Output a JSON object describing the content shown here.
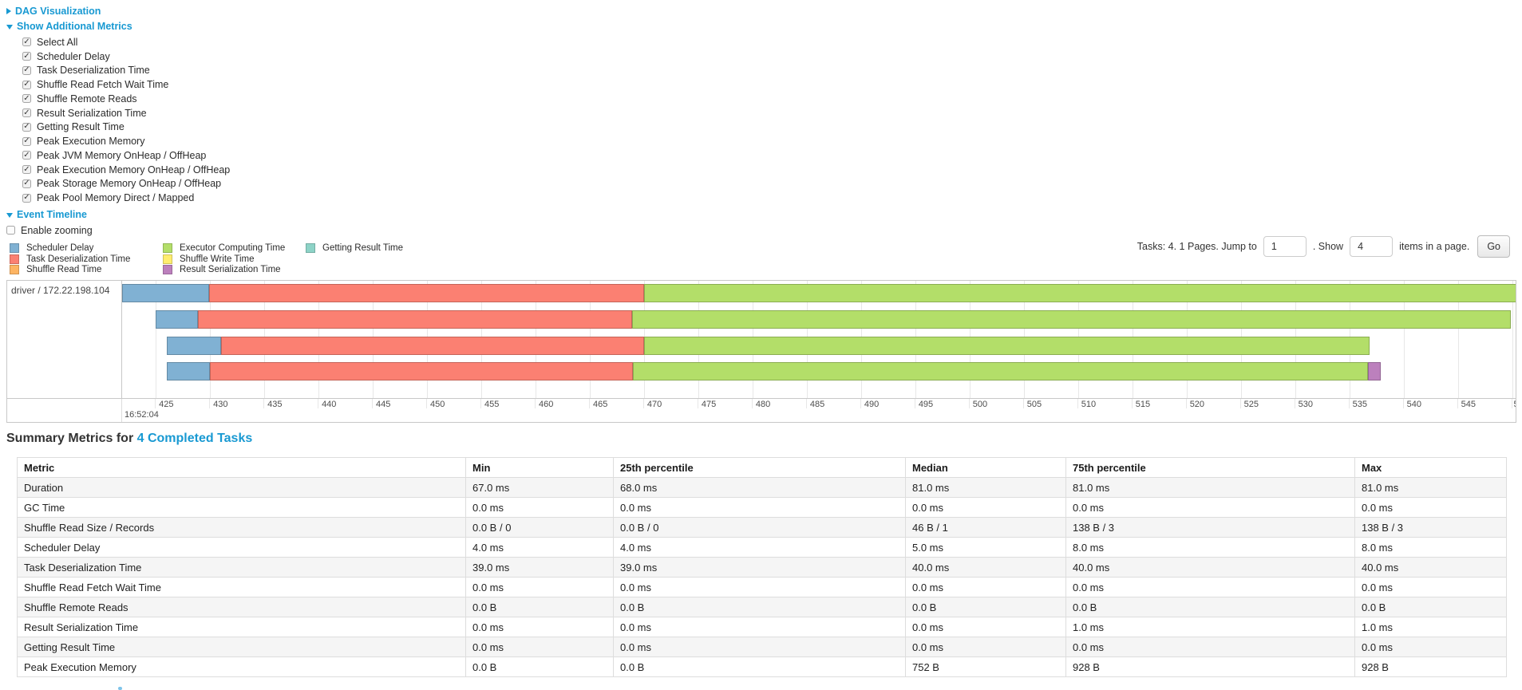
{
  "controls": {
    "dag_link": "DAG Visualization",
    "metrics_link": "Show Additional Metrics",
    "checkboxes": [
      {
        "label": "Select All",
        "checked": true
      },
      {
        "label": "Scheduler Delay",
        "checked": true
      },
      {
        "label": "Task Deserialization Time",
        "checked": true
      },
      {
        "label": "Shuffle Read Fetch Wait Time",
        "checked": true
      },
      {
        "label": "Shuffle Remote Reads",
        "checked": true
      },
      {
        "label": "Result Serialization Time",
        "checked": true
      },
      {
        "label": "Getting Result Time",
        "checked": true
      },
      {
        "label": "Peak Execution Memory",
        "checked": true
      },
      {
        "label": "Peak JVM Memory OnHeap / OffHeap",
        "checked": true
      },
      {
        "label": "Peak Execution Memory OnHeap / OffHeap",
        "checked": true
      },
      {
        "label": "Peak Storage Memory OnHeap / OffHeap",
        "checked": true
      },
      {
        "label": "Peak Pool Memory Direct / Mapped",
        "checked": true
      }
    ],
    "event_timeline_link": "Event Timeline",
    "enable_zooming_label": "Enable zooming",
    "enable_zooming_checked": false
  },
  "legend": {
    "columns": [
      [
        {
          "label": "Scheduler Delay",
          "color": "#80B1D3"
        },
        {
          "label": "Task Deserialization Time",
          "color": "#FB8072"
        },
        {
          "label": "Shuffle Read Time",
          "color": "#FDB462"
        }
      ],
      [
        {
          "label": "Executor Computing Time",
          "color": "#B3DE69"
        },
        {
          "label": "Shuffle Write Time",
          "color": "#FFED6F"
        },
        {
          "label": "Result Serialization Time",
          "color": "#BC80BD"
        }
      ],
      [
        {
          "label": "Getting Result Time",
          "color": "#8DD3C7"
        }
      ]
    ]
  },
  "pagination": {
    "prefix": "Tasks: 4. 1 Pages. Jump to",
    "jump_value": "1",
    "mid": ". Show",
    "show_value": "4",
    "suffix": "items in a page.",
    "go_label": "Go"
  },
  "chart_data": {
    "type": "timeline",
    "title": "Event Timeline",
    "group_label": "driver / 172.22.198.104",
    "x_axis": {
      "t_min": 421.9,
      "t_max": 550.4,
      "tick_start": 425,
      "tick_end": 550,
      "tick_step": 5,
      "last_tick_label": "5",
      "clock_label": "16:52:04"
    },
    "series_colors": {
      "scheduler_delay": "#80B1D3",
      "task_deserialization": "#FB8072",
      "shuffle_read": "#FDB462",
      "executor_computing": "#B3DE69",
      "shuffle_write": "#FFED6F",
      "result_serialization": "#BC80BD",
      "getting_result": "#8DD3C7"
    },
    "tasks": [
      {
        "segments": [
          {
            "type": "scheduler_delay",
            "start": 421.9,
            "end": 429.9
          },
          {
            "type": "task_deserialization",
            "start": 429.9,
            "end": 470.0
          },
          {
            "type": "executor_computing",
            "start": 470.0,
            "end": 550.4
          }
        ]
      },
      {
        "segments": [
          {
            "type": "scheduler_delay",
            "start": 425.0,
            "end": 428.9
          },
          {
            "type": "task_deserialization",
            "start": 428.9,
            "end": 468.9
          },
          {
            "type": "executor_computing",
            "start": 468.9,
            "end": 549.9
          }
        ]
      },
      {
        "segments": [
          {
            "type": "scheduler_delay",
            "start": 426.0,
            "end": 431.0
          },
          {
            "type": "task_deserialization",
            "start": 431.0,
            "end": 470.0
          },
          {
            "type": "executor_computing",
            "start": 470.0,
            "end": 536.9
          }
        ]
      },
      {
        "segments": [
          {
            "type": "scheduler_delay",
            "start": 426.0,
            "end": 430.0
          },
          {
            "type": "task_deserialization",
            "start": 430.0,
            "end": 469.0
          },
          {
            "type": "executor_computing",
            "start": 469.0,
            "end": 536.7
          },
          {
            "type": "result_serialization",
            "start": 536.7,
            "end": 537.9
          }
        ]
      }
    ]
  },
  "summary": {
    "heading_prefix": "Summary Metrics for ",
    "heading_link": "4 Completed Tasks",
    "headers": [
      "Metric",
      "Min",
      "25th percentile",
      "Median",
      "75th percentile",
      "Max"
    ],
    "rows": [
      [
        "Duration",
        "67.0 ms",
        "68.0 ms",
        "81.0 ms",
        "81.0 ms",
        "81.0 ms"
      ],
      [
        "GC Time",
        "0.0 ms",
        "0.0 ms",
        "0.0 ms",
        "0.0 ms",
        "0.0 ms"
      ],
      [
        "Shuffle Read Size / Records",
        "0.0 B / 0",
        "0.0 B / 0",
        "46 B / 1",
        "138 B / 3",
        "138 B / 3"
      ],
      [
        "Scheduler Delay",
        "4.0 ms",
        "4.0 ms",
        "5.0 ms",
        "8.0 ms",
        "8.0 ms"
      ],
      [
        "Task Deserialization Time",
        "39.0 ms",
        "39.0 ms",
        "40.0 ms",
        "40.0 ms",
        "40.0 ms"
      ],
      [
        "Shuffle Read Fetch Wait Time",
        "0.0 ms",
        "0.0 ms",
        "0.0 ms",
        "0.0 ms",
        "0.0 ms"
      ],
      [
        "Shuffle Remote Reads",
        "0.0 B",
        "0.0 B",
        "0.0 B",
        "0.0 B",
        "0.0 B"
      ],
      [
        "Result Serialization Time",
        "0.0 ms",
        "0.0 ms",
        "0.0 ms",
        "1.0 ms",
        "1.0 ms"
      ],
      [
        "Getting Result Time",
        "0.0 ms",
        "0.0 ms",
        "0.0 ms",
        "0.0 ms",
        "0.0 ms"
      ],
      [
        "Peak Execution Memory",
        "0.0 B",
        "0.0 B",
        "752 B",
        "928 B",
        "928 B"
      ]
    ]
  }
}
